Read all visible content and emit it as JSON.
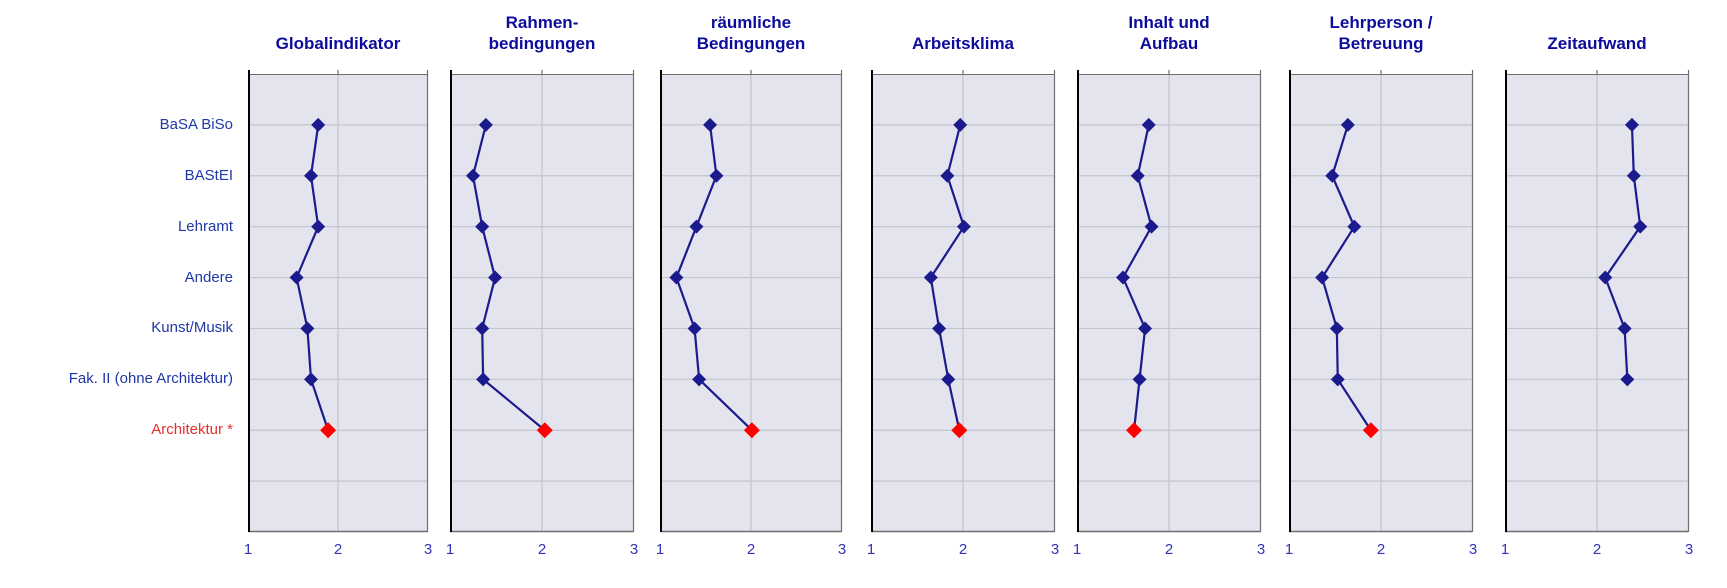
{
  "chart_data": {
    "type": "line",
    "description": "Seven small-multiple profile charts; categories on the vertical axis, rating scale 1-3 on the horizontal axis",
    "categories": [
      "BaSA BiSo",
      "BAStEI",
      "Lehramt",
      "Andere",
      "Kunst/Musik",
      "Fak. II (ohne Architektur)",
      "Architektur *"
    ],
    "highlight_category": "Architektur *",
    "x_ticks": [
      "1",
      "2",
      "3"
    ],
    "xlim": [
      1,
      3
    ],
    "grid": true,
    "series": [
      {
        "title": "Globalindikator",
        "values": [
          1.78,
          1.7,
          1.78,
          1.54,
          1.66,
          1.7,
          1.89
        ]
      },
      {
        "title": "Rahmen-\nbedingungen",
        "values": [
          1.39,
          1.25,
          1.35,
          1.49,
          1.35,
          1.36,
          2.03
        ]
      },
      {
        "title": "räumliche\nBedingungen",
        "values": [
          1.55,
          1.62,
          1.4,
          1.18,
          1.38,
          1.43,
          2.01
        ]
      },
      {
        "title": "Arbeitsklima",
        "values": [
          1.97,
          1.83,
          2.01,
          1.65,
          1.74,
          1.84,
          1.96
        ]
      },
      {
        "title": "Inhalt und\nAufbau",
        "values": [
          1.78,
          1.66,
          1.81,
          1.5,
          1.74,
          1.68,
          1.62
        ]
      },
      {
        "title": "Lehrperson /\nBetreuung",
        "values": [
          1.64,
          1.47,
          1.71,
          1.36,
          1.52,
          1.53,
          1.89
        ]
      },
      {
        "title": "Zeitaufwand",
        "values": [
          2.38,
          2.4,
          2.47,
          2.09,
          2.3,
          2.33,
          null
        ]
      }
    ]
  },
  "colors": {
    "title_text": "#0c0c9c",
    "category_text": "#1e38a8",
    "highlight_text": "#e8302a",
    "tick_text": "#3434b8",
    "line": "#1b1b8e",
    "marker": "#1b1b8e",
    "highlight_marker": "#ff0000",
    "plot_background": "#e4e4ee",
    "gridline": "#c4c4cc",
    "border": "#6e6e6e",
    "axis_left": "#000000"
  }
}
